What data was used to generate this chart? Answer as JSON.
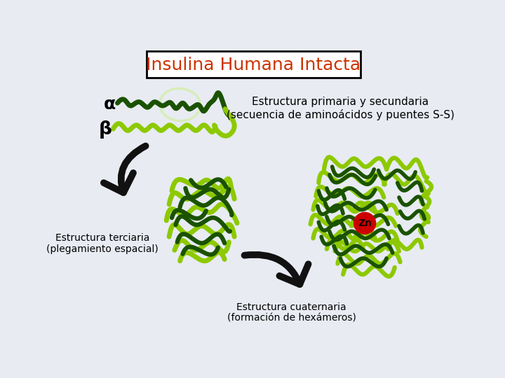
{
  "title": "Insulina Humana Intacta",
  "title_color": "#CC3300",
  "bg_color": "#E8EBF2",
  "label_alpha": "α",
  "label_beta": "β",
  "text_estructura_primaria": "Estructura primaria y secundaria\n(secuencia de aminoácidos y puentes S-S)",
  "text_terciaria": "Estructura terciaria\n(plegamiento espacial)",
  "text_cuaternaria": "Estructura cuaternaria\n(formación de hexámeros)",
  "light_green": "#8DC900",
  "dark_green": "#1A5200",
  "very_light_green": "#C8F080",
  "zn_color": "#CC0000",
  "arrow_color": "#111111",
  "font_size_title": 18,
  "font_size_labels": 10,
  "font_size_greek": 16
}
